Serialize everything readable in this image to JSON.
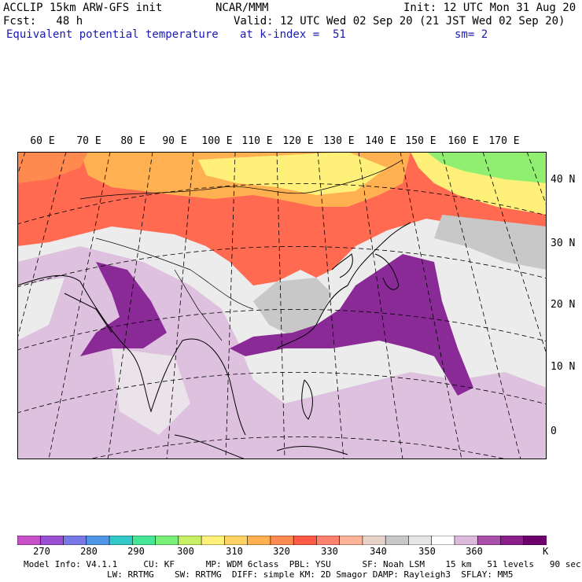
{
  "header": {
    "line1_left": "ACCLIP 15km ARW-GFS init",
    "line1_mid": "NCAR/MMM",
    "line1_right": "Init: 12 UTC Mon 31 Aug 20",
    "line2_left": "Fcst:   48 h",
    "line2_right": "Valid: 12 UTC Wed 02 Sep 20 (21 JST Wed 02 Sep 20)",
    "line3_left": "Equivalent potential temperature",
    "line3_mid": "at k-index =  51",
    "line3_right": "sm= 2"
  },
  "map": {
    "lon_labels": [
      "60 E",
      "70 E",
      "80 E",
      "90 E",
      "100 E",
      "110 E",
      "120 E",
      "130 E",
      "140 E",
      "150 E",
      "160 E",
      "170 E"
    ],
    "lat_labels": [
      "40 N",
      "30 N",
      "20 N",
      "10 N",
      "0"
    ],
    "colors": {
      "deep_purple": "#8a2a96",
      "light_purple": "#dcbadc",
      "pale_grey": "#ececec",
      "mid_grey": "#c8c8c8",
      "orange": "#ffb050",
      "red_orange": "#ff6a50",
      "red": "#ff4a3c",
      "yellow": "#fff07a",
      "green": "#90ee70"
    }
  },
  "colorbar": {
    "labels": [
      "270",
      "280",
      "290",
      "300",
      "310",
      "320",
      "330",
      "340",
      "350",
      "360"
    ],
    "unit": "K",
    "colors": [
      "#c850c8",
      "#9a50d2",
      "#7878e6",
      "#5096e6",
      "#32c8c8",
      "#46e696",
      "#78f078",
      "#c8f064",
      "#fff07a",
      "#ffd264",
      "#ffb050",
      "#ff8a50",
      "#ff5a46",
      "#ff826e",
      "#ffb49a",
      "#e6d2c8",
      "#c8c8c8",
      "#e6e6e6",
      "#ffffff",
      "#dcbadc",
      "#aa50aa",
      "#8c1e8c",
      "#6e006e"
    ]
  },
  "footer": {
    "line1": "Model Info: V4.1.1     CU: KF      MP: WDM 6class  PBL: YSU      SF: Noah LSM    15 km   51 levels   90 sec",
    "line2": "                LW: RRTMG    SW: RRTMG  DIFF: simple KM: 2D Smagor DAMP: Rayleigh3  SFLAY: MM5"
  }
}
